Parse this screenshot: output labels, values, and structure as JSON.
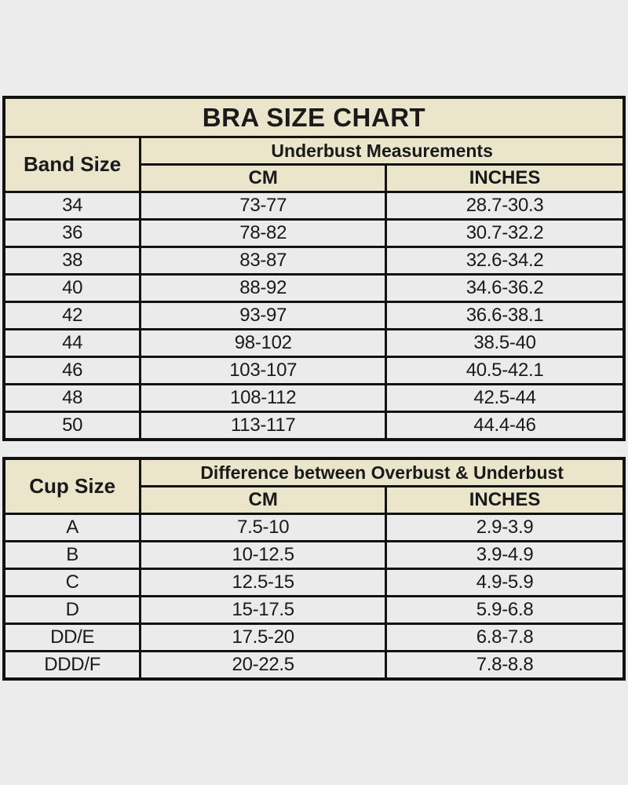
{
  "page": {
    "title": "BRA SIZE CHART"
  },
  "colors": {
    "page_bg": "#ececec",
    "header_bg": "#eae5cb",
    "row_bg": "#ebebeb",
    "border": "#121212",
    "text": "#1a1a1a"
  },
  "chart_data": [
    {
      "type": "table",
      "title": "BRA SIZE CHART",
      "row_header": "Band Size",
      "group_header": "Underbust Measurements",
      "columns": [
        "CM",
        "INCHES"
      ],
      "rows": [
        [
          "34",
          "73-77",
          "28.7-30.3"
        ],
        [
          "36",
          "78-82",
          "30.7-32.2"
        ],
        [
          "38",
          "83-87",
          "32.6-34.2"
        ],
        [
          "40",
          "88-92",
          "34.6-36.2"
        ],
        [
          "42",
          "93-97",
          "36.6-38.1"
        ],
        [
          "44",
          "98-102",
          "38.5-40"
        ],
        [
          "46",
          "103-107",
          "40.5-42.1"
        ],
        [
          "48",
          "108-112",
          "42.5-44"
        ],
        [
          "50",
          "113-117",
          "44.4-46"
        ]
      ]
    },
    {
      "type": "table",
      "row_header": "Cup Size",
      "group_header": "Difference between Overbust & Underbust",
      "columns": [
        "CM",
        "INCHES"
      ],
      "rows": [
        [
          "A",
          "7.5-10",
          "2.9-3.9"
        ],
        [
          "B",
          "10-12.5",
          "3.9-4.9"
        ],
        [
          "C",
          "12.5-15",
          "4.9-5.9"
        ],
        [
          "D",
          "15-17.5",
          "5.9-6.8"
        ],
        [
          "DD/E",
          "17.5-20",
          "6.8-7.8"
        ],
        [
          "DDD/F",
          "20-22.5",
          "7.8-8.8"
        ]
      ]
    }
  ]
}
